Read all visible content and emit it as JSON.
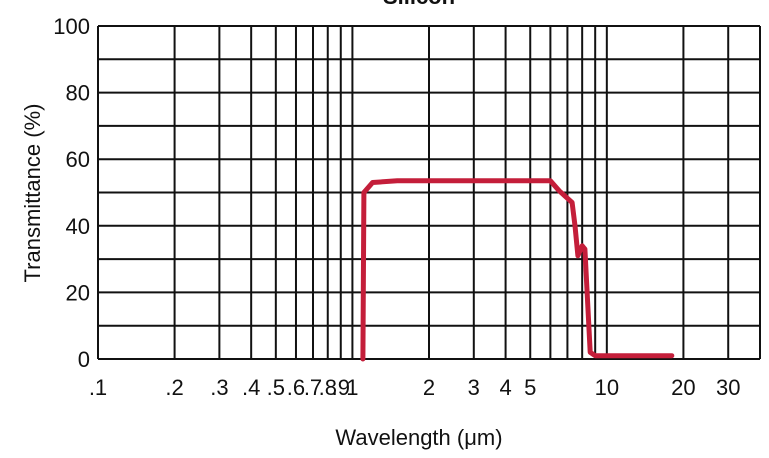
{
  "chart_data": {
    "type": "line",
    "title": "Silicon",
    "xlabel": "Wavelength (μm)",
    "ylabel": "Transmittance (%)",
    "xscale": "log",
    "xlim": [
      0.1,
      40
    ],
    "ylim": [
      0,
      100
    ],
    "x_tick_labels": [
      ".1",
      ".2",
      ".3",
      ".4",
      ".5",
      ".6",
      ".7",
      ".8",
      ".9",
      "1",
      "2",
      "3",
      "4",
      "5",
      "10",
      "20",
      "30"
    ],
    "x_tick_values": [
      0.1,
      0.2,
      0.3,
      0.4,
      0.5,
      0.6,
      0.7,
      0.8,
      0.9,
      1,
      2,
      3,
      4,
      5,
      10,
      20,
      30
    ],
    "x_gridlines": [
      0.1,
      0.2,
      0.3,
      0.4,
      0.5,
      0.6,
      0.7,
      0.8,
      0.9,
      1,
      2,
      3,
      4,
      5,
      6,
      7,
      8,
      9,
      10,
      20,
      30,
      40
    ],
    "y_tick_labels": [
      "0",
      "20",
      "40",
      "60",
      "80",
      "100"
    ],
    "y_tick_values": [
      0,
      20,
      40,
      60,
      80,
      100
    ],
    "y_gridlines": [
      0,
      10,
      20,
      30,
      40,
      50,
      60,
      70,
      80,
      90,
      100
    ],
    "grid": true,
    "series": [
      {
        "color": "#c41e3a",
        "x": [
          1.1,
          1.11,
          1.2,
          1.5,
          2,
          3,
          4,
          5,
          6.0,
          6.5,
          7.3,
          7.5,
          7.7,
          8.0,
          8.2,
          8.6,
          9.0,
          9.5,
          12.0,
          18.0
        ],
        "y": [
          0,
          50,
          53,
          53.5,
          53.5,
          53.5,
          53.5,
          53.5,
          53.5,
          50.5,
          47,
          40,
          31,
          34,
          33,
          2,
          1,
          1,
          1,
          1
        ]
      }
    ]
  }
}
